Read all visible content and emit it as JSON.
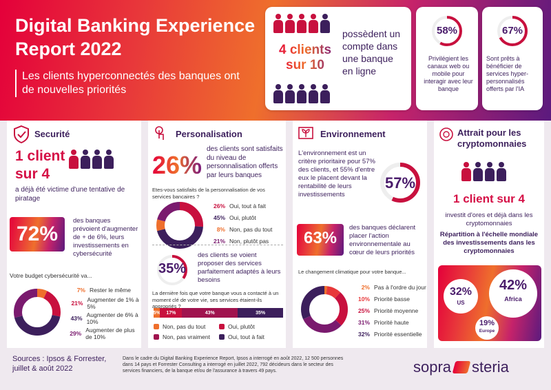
{
  "header": {
    "title": "Digital Banking Experience Report 2022",
    "subtitle": "Les clients hyperconnectés des banques ont de nouvelles priorités"
  },
  "online": {
    "big": "4 clients sur 10",
    "text": "possèdent un compte dans une banque en ligne"
  },
  "stat58": {
    "value": "58%",
    "text": "Privilégient les canaux web ou mobile pour interagir avec leur banque",
    "fraction": 0.58
  },
  "stat67": {
    "value": "67%",
    "text": "Sont prêts à bénéficier de services hyper-personnalisés offerts par l'IA",
    "fraction": 0.67
  },
  "security": {
    "title": "Securité",
    "big1": "1 client",
    "big2": "sur 4",
    "text": "a déjà été victime d'une tentative de piratage",
    "stat": "72%",
    "stat_text": "des banques prévoient d'augmenter de + de 6%, leurs investissements en cybersécurité",
    "question": "Votre budget cybersécurité va...",
    "items": [
      {
        "pct": "7%",
        "label": "Rester le même",
        "value": 7,
        "color": "#ef6f2c"
      },
      {
        "pct": "21%",
        "label": "Augmenter de 1% à 5%",
        "value": 21,
        "color": "#c8103e"
      },
      {
        "pct": "43%",
        "label": "Augmenter de 6% à 10%",
        "value": 43,
        "color": "#3c1f5c"
      },
      {
        "pct": "29%",
        "label": "Augmenter de plus de 10%",
        "value": 29,
        "color": "#7a1a6e"
      }
    ]
  },
  "perso": {
    "title": "Personalisation",
    "stat": "26%",
    "stat_text": "des clients sont satisfaits du niveau de personnalisation offerts par leurs banques",
    "question": "Etes-vous satisfaits de la personnalisation de vos services bancaires ?",
    "items": [
      {
        "pct": "26%",
        "label": "Oui, tout à fait",
        "value": 26,
        "color": "#c8103e"
      },
      {
        "pct": "45%",
        "label": "Oui, plutôt",
        "value": 45,
        "color": "#3c1f5c"
      },
      {
        "pct": "8%",
        "label": "Non, pas du tout",
        "value": 8,
        "color": "#ef6f2c"
      },
      {
        "pct": "21%",
        "label": "Non, plutôt pas",
        "value": 21,
        "color": "#7a1a6e"
      }
    ],
    "stat2": "35%",
    "stat2_text": "des clients se voient proposer des services parfaitement adaptés à leurs besoins",
    "question2": "La dernière fois que votre banque vous a contacté à un moment clé de votre vie, ses services étaient-ils appropriés ?",
    "bar": [
      {
        "label": "5%",
        "value": 5,
        "color": "#ef6f2c"
      },
      {
        "label": "17%",
        "value": 17,
        "color": "#c8103e"
      },
      {
        "label": "43%",
        "value": 43,
        "color": "#a0134e"
      },
      {
        "label": "35%",
        "value": 35,
        "color": "#3c1f5c"
      }
    ],
    "legend": [
      {
        "label": "Non, pas du tout",
        "color": "#ef6f2c"
      },
      {
        "label": "Oui, plutôt",
        "color": "#c8103e"
      },
      {
        "label": "Non, pas vraiment",
        "color": "#a0134e"
      },
      {
        "label": "Oui, tout à fait",
        "color": "#3c1f5c"
      }
    ]
  },
  "env": {
    "title": "Environnement",
    "text": "L'environnement est un critère prioritaire pour 57% des clients, et 55% d'entre eux le placent devant la rentabilité de leurs investissements",
    "stat": "57%",
    "stat2": "63%",
    "stat2_text": "des banques déclarent placer l'action environnementale au cœur de leurs priorités",
    "question": "Le changement climatique pour votre banque...",
    "items": [
      {
        "pct": "2%",
        "label": "Pas à l'ordre du jour",
        "value": 2,
        "color": "#ef6f2c"
      },
      {
        "pct": "10%",
        "label": "Priorité basse",
        "value": 10,
        "color": "#e8383a"
      },
      {
        "pct": "25%",
        "label": "Priorité moyenne",
        "value": 25,
        "color": "#c8103e"
      },
      {
        "pct": "31%",
        "label": "Priorité haute",
        "value": 31,
        "color": "#7a1a6e"
      },
      {
        "pct": "32%",
        "label": "Priorité essentielle",
        "value": 32,
        "color": "#3c1f5c"
      }
    ]
  },
  "crypto": {
    "title": "Attrait pour les cryptomonnaies",
    "big": "1 client sur 4",
    "text": "investit d'ores et déjà dans les cryptomonnaies",
    "sub": "Répartition à l'échelle mondiale des investissements dans les cryptomonnaies",
    "us_pct": "32%",
    "us": "US",
    "africa_pct": "42%",
    "africa": "Africa",
    "europe_pct": "19%",
    "europe": "Europe"
  },
  "footer": {
    "sources": "Sources : Ipsos & Forrester, juillet & août 2022",
    "note": "Dans le cadre du Digital Banking Experience Report, Ipsos a interrogé en août 2022, 12 500 personnes dans 14 pays et Forrester Consulting a interrogé en juillet 2022, 792 décideurs dans le secteur des services financiers, de la banque et/ou de l'assurance à travers 49 pays.",
    "logo_left": "sopra",
    "logo_right": "steria"
  }
}
